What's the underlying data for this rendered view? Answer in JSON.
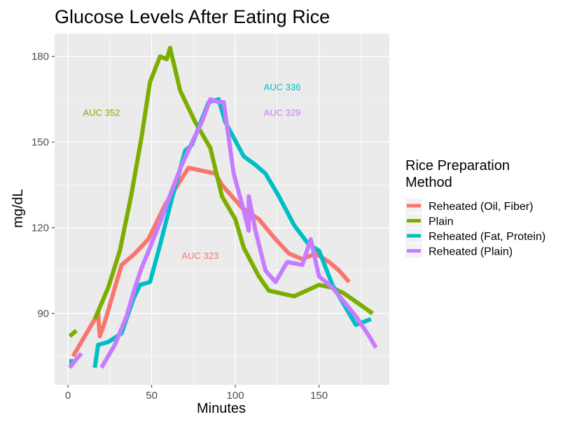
{
  "chart_data": {
    "type": "line",
    "title": "Glucose Levels After Eating Rice",
    "xlabel": "Minutes",
    "ylabel": "mg/dL",
    "xlim": [
      -8,
      192
    ],
    "ylim": [
      65,
      188
    ],
    "x_ticks": [
      0,
      50,
      100,
      150
    ],
    "x_tick_labels": [
      "0",
      "50",
      "100",
      "150"
    ],
    "y_ticks": [
      90,
      120,
      150,
      180
    ],
    "y_tick_labels": [
      "90",
      "120",
      "150",
      "180"
    ],
    "grid": true,
    "background": "#ebebeb",
    "legend": {
      "title": "Rice Preparation Method",
      "position": "right"
    },
    "series": [
      {
        "name": "Reheated (Oil, Fiber)",
        "color": "#f8766d",
        "segments": [
          [
            [
              3,
              75
            ],
            [
              18,
              90
            ],
            [
              19,
              82
            ],
            [
              22,
              87
            ],
            [
              32,
              107
            ],
            [
              40,
              111
            ],
            [
              48,
              116
            ],
            [
              58,
              128
            ],
            [
              72,
              141
            ],
            [
              80,
              140
            ],
            [
              88,
              139
            ],
            [
              92,
              135
            ],
            [
              104,
              127
            ],
            [
              114,
              123
            ],
            [
              124,
              116
            ],
            [
              132,
              111
            ],
            [
              140,
              109
            ],
            [
              148,
              111
            ],
            [
              156,
              108
            ],
            [
              162,
              105
            ],
            [
              168,
              101
            ]
          ]
        ]
      },
      {
        "name": "Plain",
        "color": "#7cae00",
        "segments": [
          [
            [
              1,
              82
            ],
            [
              5,
              84
            ]
          ],
          [
            [
              16,
              88
            ],
            [
              24,
              99
            ],
            [
              31,
              112
            ],
            [
              38,
              132
            ],
            [
              44,
              152
            ],
            [
              49,
              171
            ],
            [
              55,
              180
            ],
            [
              59,
              179
            ],
            [
              61,
              183
            ],
            [
              67,
              168
            ],
            [
              76,
              157
            ],
            [
              85,
              148
            ],
            [
              92,
              131
            ],
            [
              100,
              123
            ],
            [
              105,
              113
            ],
            [
              114,
              103
            ],
            [
              120,
              98
            ],
            [
              135,
              96
            ],
            [
              150,
              100
            ],
            [
              158,
              99
            ],
            [
              165,
              97
            ],
            [
              182,
              90
            ]
          ]
        ]
      },
      {
        "name": "Reheated (Fat, Protein)",
        "color": "#00bfc4",
        "segments": [
          [
            [
              2,
              74
            ],
            [
              2,
              72
            ]
          ],
          [
            [
              16,
              71
            ],
            [
              18,
              79
            ],
            [
              24,
              80
            ],
            [
              32,
              83
            ],
            [
              39,
              95
            ],
            [
              43,
              100
            ],
            [
              49,
              101
            ],
            [
              55,
              114
            ],
            [
              62,
              130
            ],
            [
              70,
              147
            ],
            [
              74,
              149
            ],
            [
              78,
              155
            ],
            [
              84,
              164
            ],
            [
              90,
              165
            ],
            [
              94,
              157
            ],
            [
              105,
              145
            ],
            [
              112,
              142
            ],
            [
              118,
              139
            ],
            [
              126,
              131
            ],
            [
              135,
              121
            ],
            [
              144,
              114
            ],
            [
              150,
              112
            ],
            [
              158,
              100
            ],
            [
              165,
              93
            ],
            [
              172,
              86
            ],
            [
              181,
              88
            ]
          ]
        ]
      },
      {
        "name": "Reheated (Plain)",
        "color": "#c77cff",
        "segments": [
          [
            [
              1,
              71
            ],
            [
              5,
              74
            ],
            [
              8,
              76
            ]
          ],
          [
            [
              20,
              71
            ],
            [
              28,
              79
            ],
            [
              35,
              89
            ],
            [
              40,
              99
            ],
            [
              44,
              106
            ],
            [
              49,
              113
            ],
            [
              55,
              122
            ],
            [
              62,
              133
            ],
            [
              68,
              142
            ],
            [
              75,
              151
            ],
            [
              80,
              157
            ],
            [
              85,
              165
            ],
            [
              90,
              164
            ],
            [
              93,
              164
            ],
            [
              99,
              139
            ],
            [
              105,
              126
            ],
            [
              108,
              119
            ],
            [
              108,
              131
            ],
            [
              112,
              119
            ],
            [
              118,
              105
            ],
            [
              124,
              101
            ],
            [
              131,
              108
            ],
            [
              140,
              107
            ],
            [
              145,
              116
            ],
            [
              150,
              103
            ],
            [
              158,
              99
            ],
            [
              165,
              94
            ],
            [
              172,
              89
            ],
            [
              180,
              82
            ],
            [
              184,
              78
            ]
          ]
        ]
      }
    ],
    "annotations": [
      {
        "text": "AUC 352",
        "x": 20,
        "y": 160,
        "color": "#7cae00"
      },
      {
        "text": "AUC 336",
        "x": 128,
        "y": 169,
        "color": "#00bfc4"
      },
      {
        "text": "AUC 329",
        "x": 128,
        "y": 160,
        "color": "#c77cff"
      },
      {
        "text": "AUC 323",
        "x": 79,
        "y": 110,
        "color": "#f8766d"
      }
    ]
  }
}
